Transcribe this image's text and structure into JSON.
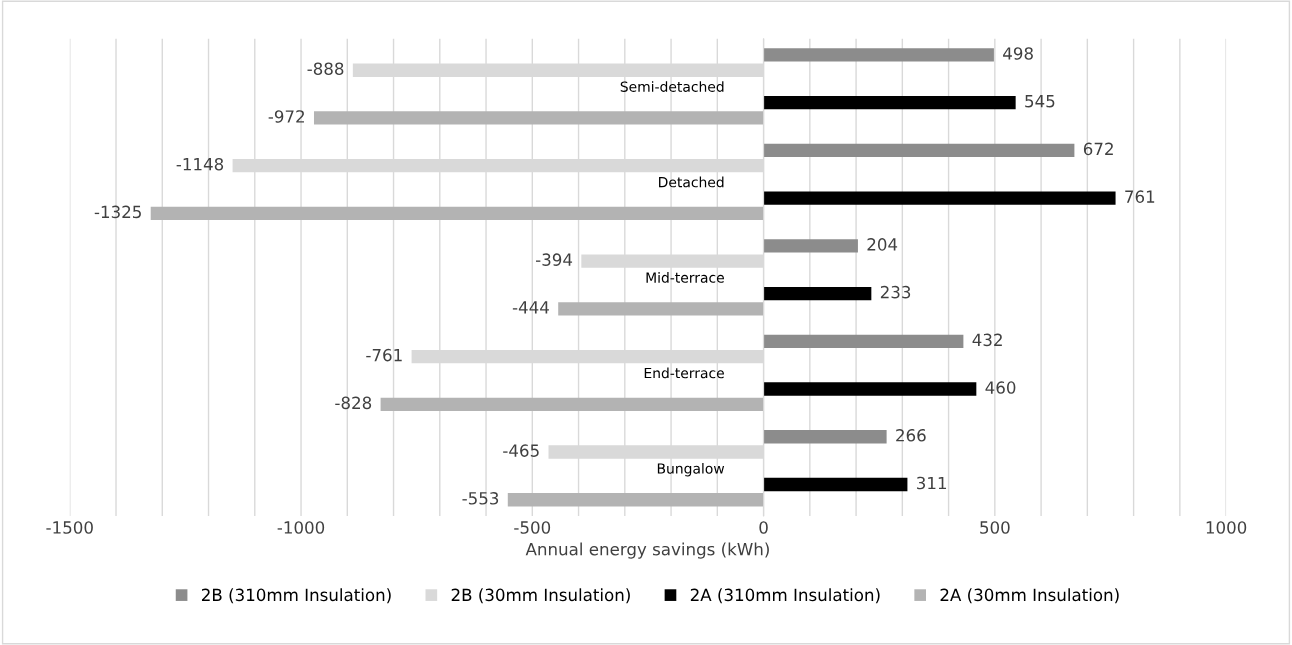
{
  "chart_data": {
    "type": "bar",
    "orientation": "horizontal",
    "categories": [
      "Semi-detached",
      "Detached",
      "Mid-terrace",
      "End-terrace",
      "Bungalow"
    ],
    "series": [
      {
        "name": "2B (310mm Insulation)",
        "color": "#8c8c8c",
        "values": [
          498,
          672,
          204,
          432,
          266
        ]
      },
      {
        "name": "2B (30mm Insulation)",
        "color": "#d9d9d9",
        "values": [
          -888,
          -1148,
          -394,
          -761,
          -465
        ]
      },
      {
        "name": "2A (310mm Insulation)",
        "color": "#000000",
        "values": [
          545,
          761,
          233,
          460,
          311
        ]
      },
      {
        "name": "2A (30mm Insulation)",
        "color": "#b3b3b3",
        "values": [
          -972,
          -1325,
          -444,
          -828,
          -553
        ]
      }
    ],
    "xlabel": "Annual energy savings (kWh)",
    "xlim": [
      -1500,
      1000
    ],
    "xticks": [
      -1500,
      {
        "value": -1400,
        "label": null
      },
      {
        "value": -1300,
        "label": null
      },
      {
        "value": -1200,
        "label": null
      },
      {
        "value": -1100,
        "label": null
      },
      -1000,
      {
        "value": -900,
        "label": null
      },
      {
        "value": -800,
        "label": null
      },
      {
        "value": -700,
        "label": null
      },
      {
        "value": -600,
        "label": null
      },
      -500,
      {
        "value": -400,
        "label": null
      },
      {
        "value": -300,
        "label": null
      },
      {
        "value": -200,
        "label": null
      },
      {
        "value": -100,
        "label": null
      },
      0,
      {
        "value": 100,
        "label": null
      },
      {
        "value": 200,
        "label": null
      },
      {
        "value": 300,
        "label": null
      },
      {
        "value": 400,
        "label": null
      },
      500,
      {
        "value": 600,
        "label": null
      },
      {
        "value": 700,
        "label": null
      },
      {
        "value": 800,
        "label": null
      },
      {
        "value": 900,
        "label": null
      },
      1000
    ],
    "grid": "x",
    "legend": "bottom",
    "data_labels": true
  }
}
